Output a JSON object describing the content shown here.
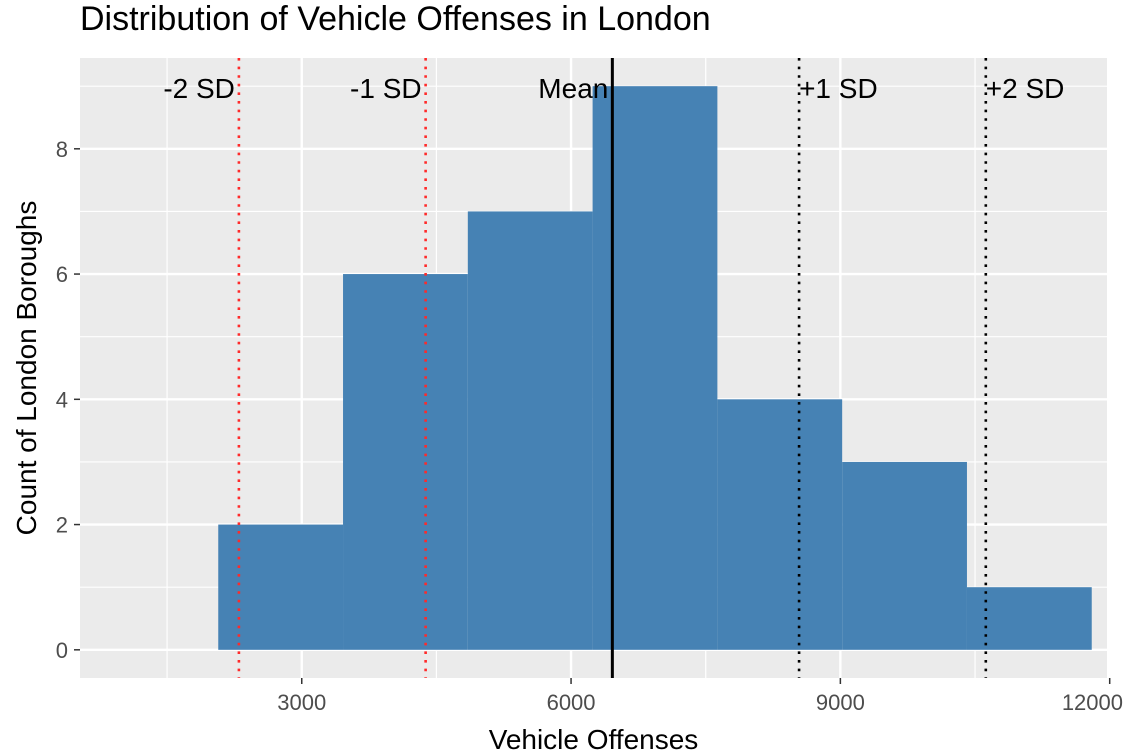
{
  "chart_data": {
    "type": "histogram",
    "title": "Distribution of Vehicle Offenses in London",
    "xlabel": "Vehicle Offenses",
    "ylabel": "Count of London Boroughs",
    "xlim": [
      530,
      11970
    ],
    "ylim": [
      -0.45,
      9.45
    ],
    "x_ticks": [
      3000,
      6000,
      9000,
      12000
    ],
    "y_ticks": [
      0,
      2,
      4,
      6,
      8
    ],
    "bins": [
      {
        "x0": 2070,
        "x1": 3460,
        "count": 2
      },
      {
        "x0": 3460,
        "x1": 4850,
        "count": 6
      },
      {
        "x0": 4850,
        "x1": 6240,
        "count": 7
      },
      {
        "x0": 6240,
        "x1": 7630,
        "count": 9
      },
      {
        "x0": 7630,
        "x1": 9020,
        "count": 4
      },
      {
        "x0": 9020,
        "x1": 10410,
        "count": 3
      },
      {
        "x0": 10410,
        "x1": 11800,
        "count": 1
      }
    ],
    "bar_color": "#4682b4",
    "panel_background": "#ebebeb",
    "grid": true,
    "reference_lines": [
      {
        "label": "-2 SD",
        "x": 2300,
        "color": "#ff2a2a",
        "style": "dotted"
      },
      {
        "label": "-1 SD",
        "x": 4380,
        "color": "#ff2a2a",
        "style": "dotted"
      },
      {
        "label": "Mean",
        "x": 6460,
        "color": "#000000",
        "style": "solid"
      },
      {
        "label": "+1 SD",
        "x": 8540,
        "color": "#000000",
        "style": "dotted"
      },
      {
        "label": "+2 SD",
        "x": 10620,
        "color": "#000000",
        "style": "dotted"
      }
    ]
  }
}
